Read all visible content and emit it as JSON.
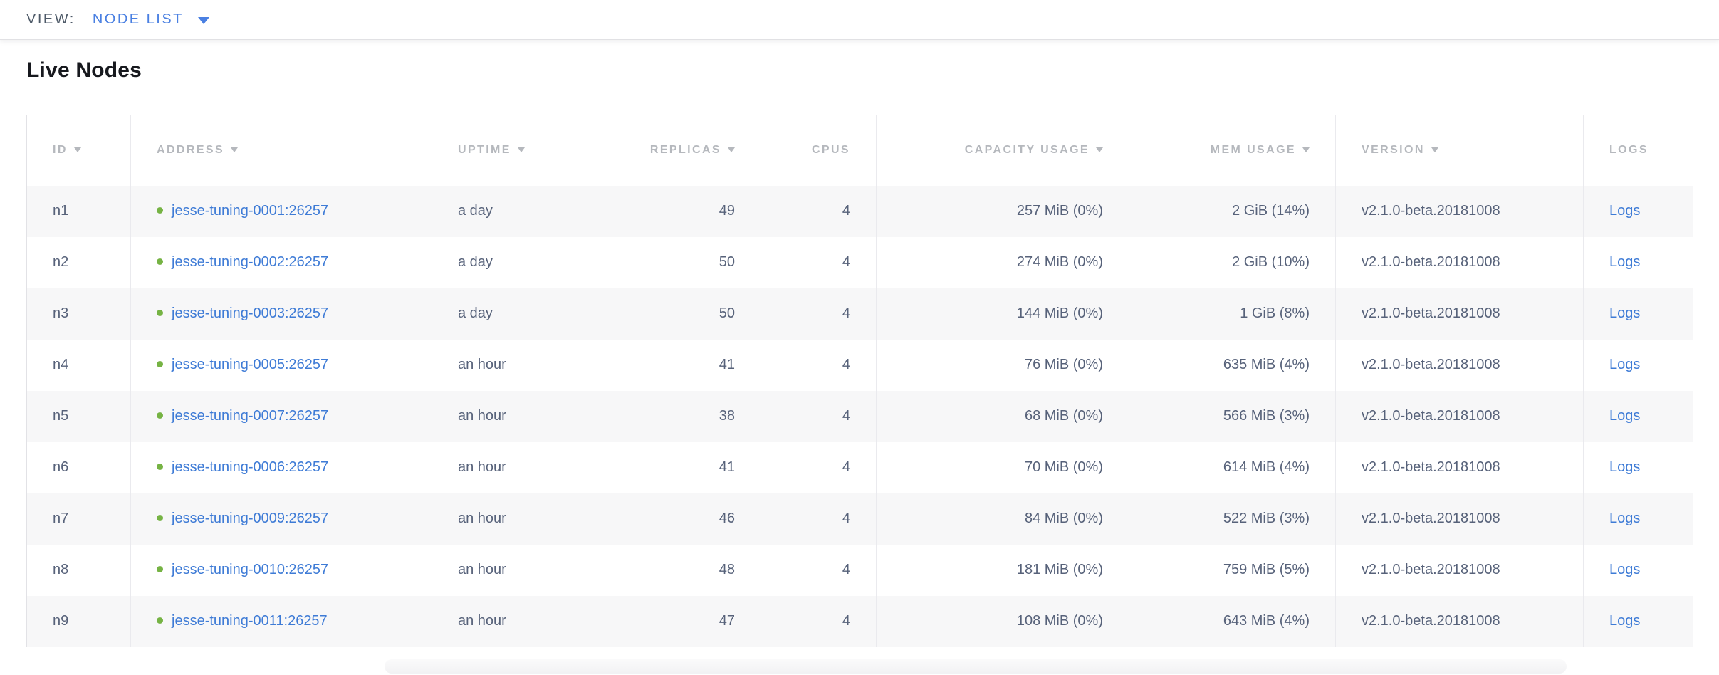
{
  "view_bar": {
    "label": "VIEW:",
    "selected": "NODE LIST"
  },
  "page_title": "Live Nodes",
  "colors": {
    "accent_blue": "#4a80e2",
    "link_blue": "#3e7bd6",
    "healthy_green": "#76b344",
    "header_text_gray": "#b5b8bd",
    "cell_text_slate": "#57627a",
    "stripe_background": "#f7f7f8"
  },
  "table": {
    "columns": [
      {
        "key": "id",
        "label": "ID",
        "sortable": true,
        "align": "left"
      },
      {
        "key": "address",
        "label": "ADDRESS",
        "sortable": true,
        "align": "left"
      },
      {
        "key": "uptime",
        "label": "UPTIME",
        "sortable": true,
        "align": "left"
      },
      {
        "key": "replicas",
        "label": "REPLICAS",
        "sortable": true,
        "align": "right"
      },
      {
        "key": "cpus",
        "label": "CPUS",
        "sortable": false,
        "align": "right"
      },
      {
        "key": "capacity",
        "label": "CAPACITY USAGE",
        "sortable": true,
        "align": "right"
      },
      {
        "key": "mem",
        "label": "MEM USAGE",
        "sortable": true,
        "align": "right"
      },
      {
        "key": "version",
        "label": "VERSION",
        "sortable": true,
        "align": "left"
      },
      {
        "key": "logs",
        "label": "LOGS",
        "sortable": false,
        "align": "left"
      }
    ],
    "rows": [
      {
        "id": "n1",
        "address": "jesse-tuning-0001:26257",
        "status": "healthy",
        "uptime": "a day",
        "replicas": "49",
        "cpus": "4",
        "capacity": "257 MiB (0%)",
        "mem": "2 GiB (14%)",
        "version": "v2.1.0-beta.20181008",
        "logs": "Logs"
      },
      {
        "id": "n2",
        "address": "jesse-tuning-0002:26257",
        "status": "healthy",
        "uptime": "a day",
        "replicas": "50",
        "cpus": "4",
        "capacity": "274 MiB (0%)",
        "mem": "2 GiB (10%)",
        "version": "v2.1.0-beta.20181008",
        "logs": "Logs"
      },
      {
        "id": "n3",
        "address": "jesse-tuning-0003:26257",
        "status": "healthy",
        "uptime": "a day",
        "replicas": "50",
        "cpus": "4",
        "capacity": "144 MiB (0%)",
        "mem": "1 GiB (8%)",
        "version": "v2.1.0-beta.20181008",
        "logs": "Logs"
      },
      {
        "id": "n4",
        "address": "jesse-tuning-0005:26257",
        "status": "healthy",
        "uptime": "an hour",
        "replicas": "41",
        "cpus": "4",
        "capacity": "76 MiB (0%)",
        "mem": "635 MiB (4%)",
        "version": "v2.1.0-beta.20181008",
        "logs": "Logs"
      },
      {
        "id": "n5",
        "address": "jesse-tuning-0007:26257",
        "status": "healthy",
        "uptime": "an hour",
        "replicas": "38",
        "cpus": "4",
        "capacity": "68 MiB (0%)",
        "mem": "566 MiB (3%)",
        "version": "v2.1.0-beta.20181008",
        "logs": "Logs"
      },
      {
        "id": "n6",
        "address": "jesse-tuning-0006:26257",
        "status": "healthy",
        "uptime": "an hour",
        "replicas": "41",
        "cpus": "4",
        "capacity": "70 MiB (0%)",
        "mem": "614 MiB (4%)",
        "version": "v2.1.0-beta.20181008",
        "logs": "Logs"
      },
      {
        "id": "n7",
        "address": "jesse-tuning-0009:26257",
        "status": "healthy",
        "uptime": "an hour",
        "replicas": "46",
        "cpus": "4",
        "capacity": "84 MiB (0%)",
        "mem": "522 MiB (3%)",
        "version": "v2.1.0-beta.20181008",
        "logs": "Logs"
      },
      {
        "id": "n8",
        "address": "jesse-tuning-0010:26257",
        "status": "healthy",
        "uptime": "an hour",
        "replicas": "48",
        "cpus": "4",
        "capacity": "181 MiB (0%)",
        "mem": "759 MiB (5%)",
        "version": "v2.1.0-beta.20181008",
        "logs": "Logs"
      },
      {
        "id": "n9",
        "address": "jesse-tuning-0011:26257",
        "status": "healthy",
        "uptime": "an hour",
        "replicas": "47",
        "cpus": "4",
        "capacity": "108 MiB (0%)",
        "mem": "643 MiB (4%)",
        "version": "v2.1.0-beta.20181008",
        "logs": "Logs"
      }
    ]
  }
}
